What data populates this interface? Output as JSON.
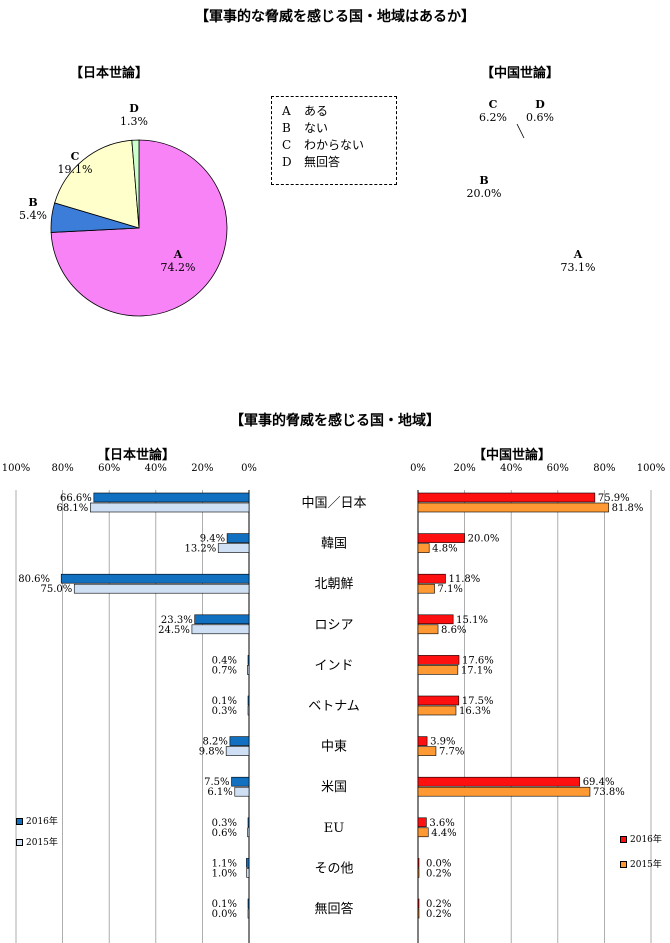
{
  "title_pies": "【軍事的な脅威を感じる国・地域はあるか】",
  "legend_box": [
    {
      "key": "A",
      "label": "ある"
    },
    {
      "key": "B",
      "label": "ない"
    },
    {
      "key": "C",
      "label": "わからない"
    },
    {
      "key": "D",
      "label": "無回答"
    }
  ],
  "title_bars": "【軍事的脅威を感じる国・地域】",
  "legend_japan": {
    "s2016": "2016年",
    "s2015": "2015年"
  },
  "legend_china": {
    "s2016": "2016年",
    "s2015": "2015年"
  },
  "colors": {
    "pie_A": "#f783f7",
    "pie_B": "#3b7dd8",
    "pie_C": "#ffffcc",
    "pie_D": "#ccffcc",
    "jp_2016": "#1270c0",
    "jp_2015": "#cfe0f4",
    "cn_2016": "#ff1010",
    "cn_2015": "#ff9933"
  },
  "chart_data": [
    {
      "type": "pie",
      "title": "【日本世論】",
      "slices": [
        {
          "key": "A",
          "label": "A",
          "value": 74.2,
          "text": "74.2%"
        },
        {
          "key": "B",
          "label": "B",
          "value": 5.4,
          "text": "5.4%"
        },
        {
          "key": "C",
          "label": "C",
          "value": 19.1,
          "text": "19.1%"
        },
        {
          "key": "D",
          "label": "D",
          "value": 1.3,
          "text": "1.3%"
        }
      ]
    },
    {
      "type": "pie",
      "title": "【中国世論】",
      "slices": [
        {
          "key": "A",
          "label": "A",
          "value": 73.1,
          "text": "73.1%"
        },
        {
          "key": "B",
          "label": "B",
          "value": 20.0,
          "text": "20.0%"
        },
        {
          "key": "C",
          "label": "C",
          "value": 6.2,
          "text": "6.2%"
        },
        {
          "key": "D",
          "label": "D",
          "value": 0.6,
          "text": "0.6%"
        }
      ]
    },
    {
      "type": "bar",
      "orientation": "horizontal",
      "direction": "right-to-left",
      "title": "【日本世論】",
      "categories": [
        "中国／日本",
        "韓国",
        "北朝鮮",
        "ロシア",
        "インド",
        "ベトナム",
        "中東",
        "米国",
        "EU",
        "その他",
        "無回答"
      ],
      "xlim": [
        0,
        100
      ],
      "ticks": [
        "100%",
        "80%",
        "60%",
        "40%",
        "20%",
        "0%"
      ],
      "series": [
        {
          "name": "2016年",
          "values": [
            66.6,
            9.4,
            80.6,
            23.3,
            0.4,
            0.1,
            8.2,
            7.5,
            0.3,
            1.1,
            0.1
          ],
          "labels": [
            "66.6%",
            "9.4%",
            "80.6%",
            "23.3%",
            "0.4%",
            "0.1%",
            "8.2%",
            "7.5%",
            "0.3%",
            "1.1%",
            "0.1%"
          ]
        },
        {
          "name": "2015年",
          "values": [
            68.1,
            13.2,
            75.0,
            24.5,
            0.7,
            0.3,
            9.8,
            6.1,
            0.6,
            1.0,
            0.0
          ],
          "labels": [
            "68.1%",
            "13.2%",
            "75.0%",
            "24.5%",
            "0.7%",
            "0.3%",
            "9.8%",
            "6.1%",
            "0.6%",
            "1.0%",
            "0.0%"
          ]
        }
      ]
    },
    {
      "type": "bar",
      "orientation": "horizontal",
      "title": "【中国世論】",
      "categories": [
        "中国／日本",
        "韓国",
        "北朝鮮",
        "ロシア",
        "インド",
        "ベトナム",
        "中東",
        "米国",
        "EU",
        "その他",
        "無回答"
      ],
      "xlim": [
        0,
        100
      ],
      "ticks": [
        "0%",
        "20%",
        "40%",
        "60%",
        "80%",
        "100%"
      ],
      "series": [
        {
          "name": "2016年",
          "values": [
            75.9,
            20.0,
            11.8,
            15.1,
            17.6,
            17.5,
            3.9,
            69.4,
            3.6,
            0.0,
            0.2
          ],
          "labels": [
            "75.9%",
            "20.0%",
            "11.8%",
            "15.1%",
            "17.6%",
            "17.5%",
            "3.9%",
            "69.4%",
            "3.6%",
            "0.0%",
            "0.2%"
          ]
        },
        {
          "name": "2015年",
          "values": [
            81.8,
            4.8,
            7.1,
            8.6,
            17.1,
            16.3,
            7.7,
            73.8,
            4.4,
            0.2,
            0.2
          ],
          "labels": [
            "81.8%",
            "4.8%",
            "7.1%",
            "8.6%",
            "17.1%",
            "16.3%",
            "7.7%",
            "73.8%",
            "4.4%",
            "0.2%",
            "0.2%"
          ]
        }
      ]
    }
  ]
}
